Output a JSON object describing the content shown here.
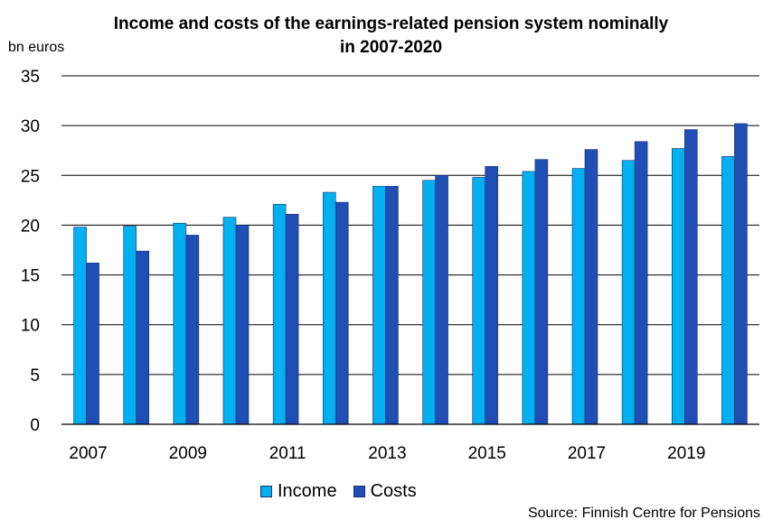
{
  "chart_data": {
    "type": "bar",
    "title_line1": "Income and costs of the earnings-related pension system nominally",
    "title_line2": "in 2007-2020",
    "ylabel": "bn euros",
    "ylim": [
      0,
      35
    ],
    "yticks": [
      0,
      5,
      10,
      15,
      20,
      25,
      30,
      35
    ],
    "categories": [
      "2007",
      "2008",
      "2009",
      "2010",
      "2011",
      "2012",
      "2013",
      "2014",
      "2015",
      "2016",
      "2017",
      "2018",
      "2019",
      "2020"
    ],
    "xtick_labels": [
      "2007",
      "",
      "2009",
      "",
      "2011",
      "",
      "2013",
      "",
      "2015",
      "",
      "2017",
      "",
      "2019",
      ""
    ],
    "grid": true,
    "legend_position": "bottom",
    "series": [
      {
        "name": "Income",
        "color": "#00b0f0",
        "values": [
          19.8,
          19.9,
          20.2,
          20.8,
          22.1,
          23.3,
          23.9,
          24.5,
          24.8,
          25.4,
          25.7,
          26.5,
          27.7,
          26.9
        ]
      },
      {
        "name": "Costs",
        "color": "#1f4eb4",
        "values": [
          16.2,
          17.4,
          19.0,
          20.0,
          21.1,
          22.3,
          23.9,
          25.0,
          25.9,
          26.6,
          27.6,
          28.4,
          29.6,
          30.2
        ]
      }
    ],
    "source": "Source: Finnish Centre for Pensions"
  }
}
